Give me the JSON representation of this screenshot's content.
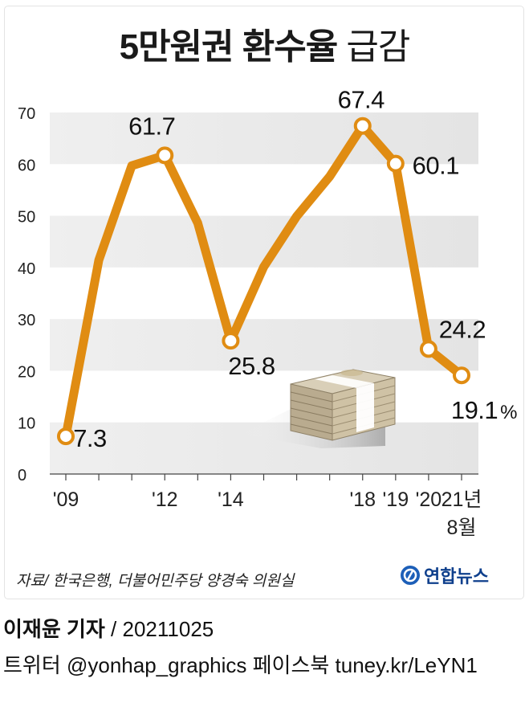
{
  "title": {
    "bold": "5만원권 환수율",
    "light": "급감"
  },
  "chart_data": {
    "type": "line",
    "title": "5만원권 환수율 급감",
    "unit": "%",
    "ylim": [
      0,
      70
    ],
    "yticks": [
      0,
      10,
      20,
      30,
      40,
      50,
      60,
      70
    ],
    "x": [
      2009,
      2010,
      2011,
      2012,
      2013,
      2014,
      2015,
      2016,
      2017,
      2018,
      2019,
      2020,
      2021
    ],
    "values": [
      7.3,
      41.4,
      59.7,
      61.7,
      48.6,
      25.8,
      40.1,
      49.9,
      57.6,
      67.4,
      60.1,
      24.2,
      19.1
    ],
    "data_labels": [
      {
        "index": 0,
        "text": "7.3"
      },
      {
        "index": 3,
        "text": "61.7"
      },
      {
        "index": 5,
        "text": "25.8"
      },
      {
        "index": 9,
        "text": "67.4"
      },
      {
        "index": 10,
        "text": "60.1"
      },
      {
        "index": 11,
        "text": "24.2"
      },
      {
        "index": 12,
        "text": "19.1"
      }
    ],
    "percent_sign": "%",
    "xtick_labels": [
      {
        "x": 2009,
        "text": "'09"
      },
      {
        "x": 2012,
        "text": "'12"
      },
      {
        "x": 2014,
        "text": "'14"
      },
      {
        "x": 2018,
        "text": "'18"
      },
      {
        "x": 2019,
        "text": "'19"
      },
      {
        "x": 2020,
        "text": "'20"
      },
      {
        "x": 2021,
        "text": "21년",
        "text2": "8월"
      }
    ],
    "line_color": "#e08c12",
    "band_color": "#e9e9e9"
  },
  "footer": {
    "source": "자료/ 한국은행, 더불어민주당 양경숙 의원실",
    "logo_text": "연합뉴스",
    "reporter": "이재윤 기자",
    "date": " / 20211025",
    "social": "트위터 @yonhap_graphics  페이스북 tuney.kr/LeYN1"
  }
}
